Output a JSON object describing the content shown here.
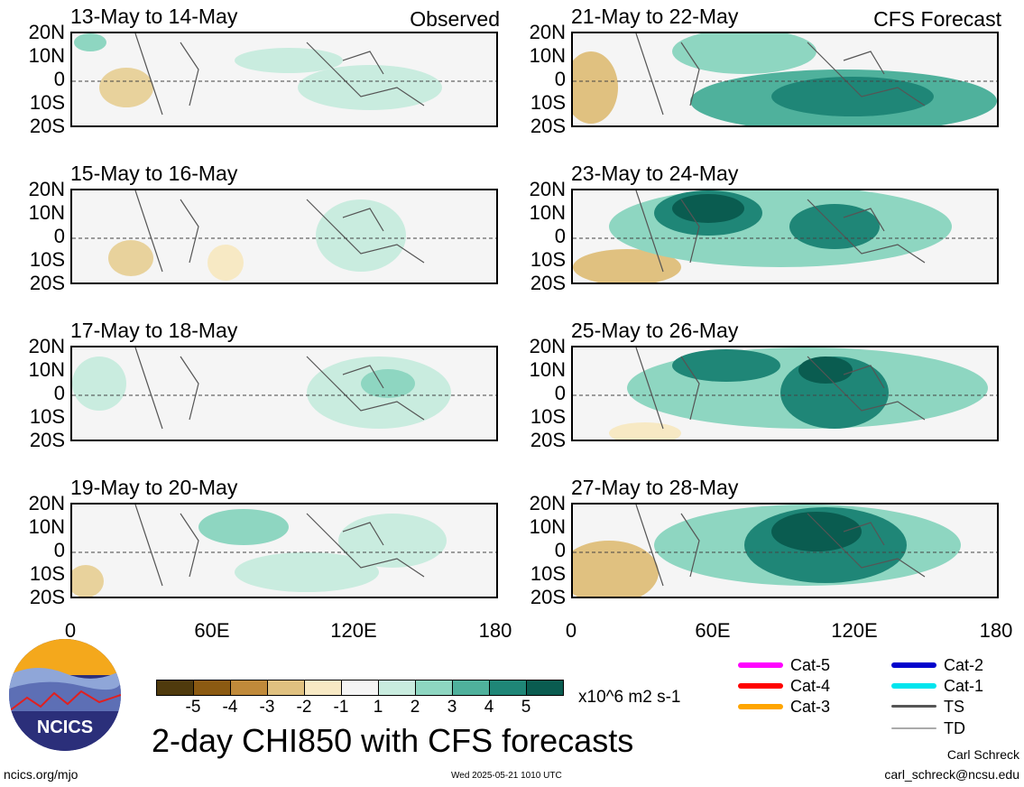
{
  "panels": {
    "left": [
      {
        "title": "13-May to 14-May",
        "tag": "Observed"
      },
      {
        "title": "15-May to 16-May",
        "tag": ""
      },
      {
        "title": "17-May to 18-May",
        "tag": ""
      },
      {
        "title": "19-May to 20-May",
        "tag": ""
      }
    ],
    "right": [
      {
        "title": "21-May to 22-May",
        "tag": "CFS Forecast"
      },
      {
        "title": "23-May to 24-May",
        "tag": ""
      },
      {
        "title": "25-May to 26-May",
        "tag": ""
      },
      {
        "title": "27-May to 28-May",
        "tag": ""
      }
    ]
  },
  "axes": {
    "lat_labels": [
      "20N",
      "10N",
      "0",
      "10S",
      "20S"
    ],
    "lon_labels": [
      "0",
      "60E",
      "120E",
      "180"
    ]
  },
  "colorbar": {
    "labels": [
      "-5",
      "-4",
      "-3",
      "-2",
      "-1",
      "1",
      "2",
      "3",
      "4",
      "5"
    ],
    "colors": [
      "#4f3a0d",
      "#8b5a12",
      "#c08a3a",
      "#e0c180",
      "#f7e9c4",
      "#f5f5f5",
      "#c9ecdf",
      "#8ed6c1",
      "#4fb19c",
      "#1f8677",
      "#0a5c50"
    ],
    "units": "x10^6 m2 s-1"
  },
  "legend": {
    "items": [
      {
        "label": "Cat-5",
        "color": "#ff00ff"
      },
      {
        "label": "Cat-4",
        "color": "#ff0000"
      },
      {
        "label": "Cat-3",
        "color": "#ffa500"
      },
      {
        "label": "Cat-2",
        "color": "#0000cc"
      },
      {
        "label": "Cat-1",
        "color": "#00e5ee"
      },
      {
        "label": "TS",
        "color": "#555555"
      },
      {
        "label": "TD",
        "color": "#aaaaaa"
      }
    ]
  },
  "main_title": "2-day CHI850 with CFS forecasts",
  "logo_text": "NCICS",
  "footer": {
    "url": "ncics.org/mjo",
    "timestamp": "Wed 2025-05-21 1010 UTC",
    "author": "Carl Schreck",
    "email": "carl_schreck@ncsu.edu"
  }
}
